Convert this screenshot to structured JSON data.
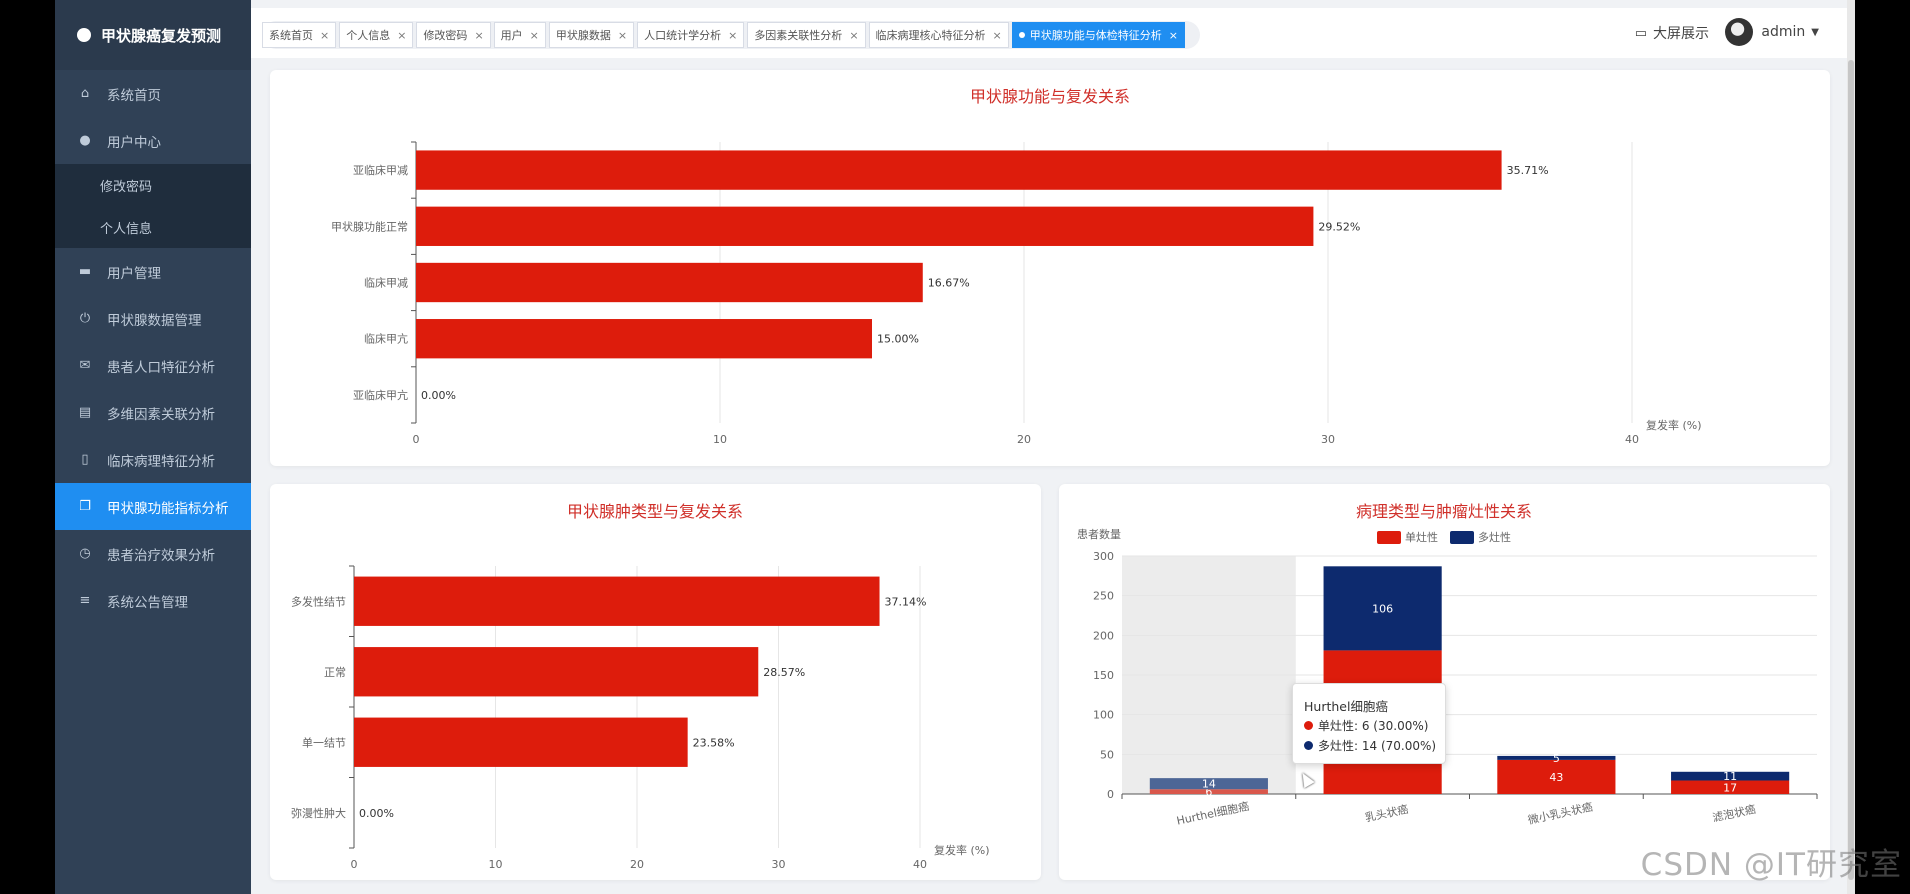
{
  "app": {
    "title": "甲状腺癌复发预测"
  },
  "sidebar": {
    "items": [
      {
        "label": "系统首页",
        "icon": "home-icon"
      },
      {
        "label": "用户中心",
        "icon": "user-icon"
      },
      {
        "label": "用户管理",
        "icon": "user-manage-icon"
      },
      {
        "label": "甲状腺数据管理",
        "icon": "power-icon"
      },
      {
        "label": "患者人口特征分析",
        "icon": "mail-icon"
      },
      {
        "label": "多维因素关联分析",
        "icon": "clipboard-icon"
      },
      {
        "label": "临床病理特征分析",
        "icon": "phone-icon"
      },
      {
        "label": "甲状腺功能指标分析",
        "icon": "copy-icon"
      },
      {
        "label": "患者治疗效果分析",
        "icon": "clock-icon"
      },
      {
        "label": "系统公告管理",
        "icon": "list-icon"
      }
    ],
    "subitems": [
      {
        "label": "修改密码"
      },
      {
        "label": "个人信息"
      }
    ]
  },
  "tabs": [
    {
      "label": "系统首页"
    },
    {
      "label": "个人信息"
    },
    {
      "label": "修改密码"
    },
    {
      "label": "用户"
    },
    {
      "label": "甲状腺数据"
    },
    {
      "label": "人口统计学分析"
    },
    {
      "label": "多因素关联性分析"
    },
    {
      "label": "临床病理核心特征分析"
    },
    {
      "label": "甲状腺功能与体检特征分析"
    }
  ],
  "header": {
    "bigscreen": "大屏展示",
    "user": "admin"
  },
  "colors": {
    "bar_red": "#dd1c0c",
    "navy": "#0d2a6e",
    "sidebar": "#304156",
    "accent": "#1f8ef1"
  },
  "tooltip": {
    "title": "Hurthel细胞癌",
    "row1": "单灶性: 6 (30.00%)",
    "row2": "多灶性: 14 (70.00%)"
  },
  "watermark": "CSDN @IT研究室",
  "chart_data": [
    {
      "type": "bar",
      "orientation": "horizontal",
      "title": "甲状腺功能与复发关系",
      "categories": [
        "亚临床甲减",
        "甲状腺功能正常",
        "临床甲减",
        "临床甲亢",
        "亚临床甲亢"
      ],
      "values": [
        35.71,
        29.52,
        16.67,
        15.0,
        0.0
      ],
      "labels": [
        "35.71%",
        "29.52%",
        "16.67%",
        "15.00%",
        "0.00%"
      ],
      "xlabel": "复发率 (%)",
      "xlim": [
        0,
        40
      ],
      "xticks": [
        0,
        10,
        20,
        30,
        40
      ],
      "grid": true
    },
    {
      "type": "bar",
      "orientation": "horizontal",
      "title": "甲状腺肿类型与复发关系",
      "categories": [
        "多发性结节",
        "正常",
        "单一结节",
        "弥漫性肿大"
      ],
      "values": [
        37.14,
        28.57,
        23.58,
        0.0
      ],
      "labels": [
        "37.14%",
        "28.57%",
        "23.58%",
        "0.00%"
      ],
      "xlabel": "复发率 (%)",
      "xlim": [
        0,
        40
      ],
      "xticks": [
        0,
        10,
        20,
        30,
        40
      ],
      "grid": true
    },
    {
      "type": "bar",
      "stacked": true,
      "title": "病理类型与肿瘤灶性关系",
      "ylabel": "患者数量",
      "categories": [
        "Hurthel细胞癌",
        "乳头状癌",
        "微小乳头状癌",
        "滤泡状癌"
      ],
      "series": [
        {
          "name": "单灶性",
          "values": [
            6,
            181,
            43,
            17
          ]
        },
        {
          "name": "多灶性",
          "values": [
            14,
            106,
            5,
            11
          ]
        }
      ],
      "data_labels": [
        [
          "6",
          "",
          "43",
          "17"
        ],
        [
          "14",
          "106",
          "5",
          "11"
        ]
      ],
      "ylim": [
        0,
        300
      ],
      "yticks": [
        0,
        50,
        100,
        150,
        200,
        250,
        300
      ],
      "legend": "top-center",
      "grid": true
    }
  ]
}
